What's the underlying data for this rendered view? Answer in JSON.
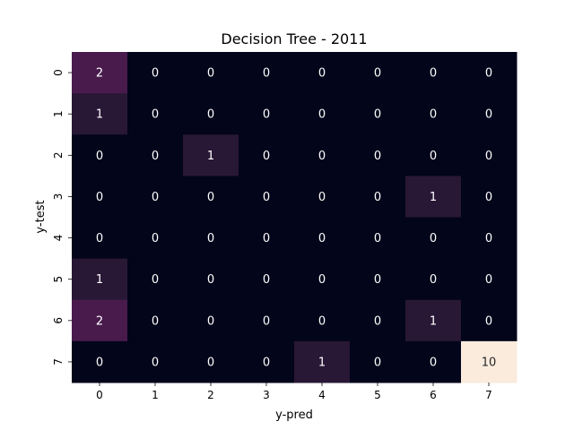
{
  "chart_data": {
    "type": "heatmap",
    "title": "Decision Tree - 2011",
    "xlabel": "y-pred",
    "ylabel": "y-test",
    "x_categories": [
      "0",
      "1",
      "2",
      "3",
      "4",
      "5",
      "6",
      "7"
    ],
    "y_categories": [
      "0",
      "1",
      "2",
      "3",
      "4",
      "5",
      "6",
      "7"
    ],
    "values": [
      [
        2,
        0,
        0,
        0,
        0,
        0,
        0,
        0
      ],
      [
        1,
        0,
        0,
        0,
        0,
        0,
        0,
        0
      ],
      [
        0,
        0,
        1,
        0,
        0,
        0,
        0,
        0
      ],
      [
        0,
        0,
        0,
        0,
        0,
        0,
        1,
        0
      ],
      [
        0,
        0,
        0,
        0,
        0,
        0,
        0,
        0
      ],
      [
        1,
        0,
        0,
        0,
        0,
        0,
        0,
        0
      ],
      [
        2,
        0,
        0,
        0,
        0,
        0,
        1,
        0
      ],
      [
        0,
        0,
        0,
        0,
        1,
        0,
        0,
        10
      ]
    ],
    "colormap": "rocket",
    "value_range": [
      0,
      10
    ],
    "colorbar": false,
    "grid": false,
    "annotated": true
  }
}
